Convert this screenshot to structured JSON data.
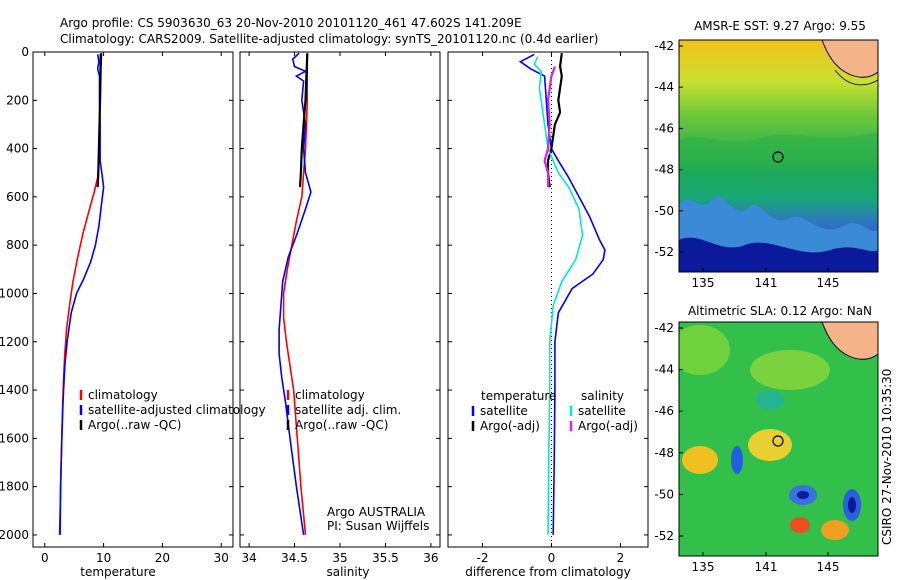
{
  "header": {
    "title_line1": "Argo profile: CS 5903630_63 20-Nov-2010 20101120_461 47.602S 141.209E",
    "title_line2": "Climatology: CARS2009. Satellite-adjusted climatology: synTS_20101120.nc (0.4d earlier)"
  },
  "side_label": "CSIRO 27-Nov-2010 10:35:30",
  "colors": {
    "climatology": "#ff0000",
    "satellite": "#0000ff",
    "argo": "#000000",
    "sal_satellite": "#00e5e5",
    "sal_argo": "#e020e0",
    "land": "#f5b38a"
  },
  "chart_data": [
    {
      "type": "line",
      "id": "temperature",
      "xlabel": "temperature",
      "ylabel": "",
      "xlim": [
        -2,
        32
      ],
      "ylim": [
        2050,
        0
      ],
      "reverse_y": true,
      "xticks": [
        0,
        10,
        20,
        30
      ],
      "yticks": [
        0,
        200,
        400,
        600,
        800,
        1000,
        1200,
        1400,
        1600,
        1800,
        2000
      ],
      "legend": [
        "climatology",
        "satellite-adjusted climatology",
        "Argo(..raw -QC)"
      ],
      "series": [
        {
          "name": "climatology",
          "color": "#ff0000",
          "points": [
            [
              9.4,
              10
            ],
            [
              9.4,
              100
            ],
            [
              9.3,
              300
            ],
            [
              9.2,
              450
            ],
            [
              9.0,
              520
            ],
            [
              8.4,
              580
            ],
            [
              7.6,
              650
            ],
            [
              6.5,
              750
            ],
            [
              5.6,
              850
            ],
            [
              4.8,
              950
            ],
            [
              4.2,
              1050
            ],
            [
              3.7,
              1150
            ],
            [
              3.4,
              1250
            ],
            [
              3.2,
              1350
            ],
            [
              3.0,
              1500
            ],
            [
              2.8,
              1700
            ],
            [
              2.6,
              1900
            ],
            [
              2.5,
              2000
            ]
          ]
        },
        {
          "name": "satellite-adjusted climatology",
          "color": "#0000ff",
          "points": [
            [
              9.0,
              10
            ],
            [
              9.2,
              40
            ],
            [
              9.0,
              70
            ],
            [
              9.3,
              100
            ],
            [
              9.3,
              200
            ],
            [
              9.4,
              300
            ],
            [
              9.4,
              450
            ],
            [
              9.7,
              500
            ],
            [
              10.0,
              560
            ],
            [
              9.6,
              640
            ],
            [
              9.2,
              720
            ],
            [
              8.6,
              800
            ],
            [
              7.8,
              870
            ],
            [
              6.6,
              940
            ],
            [
              5.4,
              1000
            ],
            [
              4.5,
              1080
            ],
            [
              3.8,
              1200
            ],
            [
              3.4,
              1300
            ],
            [
              3.1,
              1450
            ],
            [
              2.9,
              1600
            ],
            [
              2.7,
              1800
            ],
            [
              2.6,
              2000
            ]
          ]
        },
        {
          "name": "Argo(..raw -QC)",
          "color": "#000000",
          "points": [
            [
              9.6,
              5
            ],
            [
              9.5,
              80
            ],
            [
              9.4,
              200
            ],
            [
              9.3,
              300
            ],
            [
              9.2,
              400
            ],
            [
              9.1,
              500
            ],
            [
              9.0,
              560
            ]
          ]
        }
      ]
    },
    {
      "type": "line",
      "id": "salinity",
      "xlabel": "salinity",
      "ylabel": "",
      "xlim": [
        33.9,
        36.1
      ],
      "ylim": [
        2050,
        0
      ],
      "reverse_y": true,
      "xticks": [
        34,
        34.5,
        35,
        35.5,
        36
      ],
      "yticks": [
        0,
        200,
        400,
        600,
        800,
        1000,
        1200,
        1400,
        1600,
        1800,
        2000
      ],
      "legend": [
        "climatology",
        "satellite adj. clim.",
        "Argo(..raw -QC)"
      ],
      "annotations": [
        "Argo AUSTRALIA",
        "PI: Susan Wijffels"
      ],
      "series": [
        {
          "name": "climatology",
          "color": "#ff0000",
          "points": [
            [
              34.64,
              10
            ],
            [
              34.64,
              200
            ],
            [
              34.62,
              400
            ],
            [
              34.6,
              500
            ],
            [
              34.58,
              600
            ],
            [
              34.52,
              700
            ],
            [
              34.47,
              800
            ],
            [
              34.42,
              900
            ],
            [
              34.38,
              1000
            ],
            [
              34.38,
              1100
            ],
            [
              34.41,
              1200
            ],
            [
              34.45,
              1300
            ],
            [
              34.49,
              1400
            ],
            [
              34.53,
              1600
            ],
            [
              34.57,
              1800
            ],
            [
              34.62,
              2000
            ]
          ]
        },
        {
          "name": "satellite adj. clim.",
          "color": "#0000ff",
          "points": [
            [
              34.55,
              5
            ],
            [
              34.48,
              30
            ],
            [
              34.5,
              60
            ],
            [
              34.62,
              80
            ],
            [
              34.52,
              100
            ],
            [
              34.6,
              120
            ],
            [
              34.58,
              200
            ],
            [
              34.62,
              300
            ],
            [
              34.6,
              400
            ],
            [
              34.62,
              500
            ],
            [
              34.68,
              580
            ],
            [
              34.62,
              650
            ],
            [
              34.53,
              750
            ],
            [
              34.43,
              850
            ],
            [
              34.37,
              950
            ],
            [
              34.35,
              1050
            ],
            [
              34.33,
              1150
            ],
            [
              34.33,
              1250
            ],
            [
              34.36,
              1350
            ],
            [
              34.4,
              1450
            ],
            [
              34.45,
              1600
            ],
            [
              34.52,
              1800
            ],
            [
              34.6,
              2000
            ]
          ]
        },
        {
          "name": "Argo(..raw -QC)",
          "color": "#000000",
          "points": [
            [
              34.64,
              5
            ],
            [
              34.63,
              100
            ],
            [
              34.62,
              200
            ],
            [
              34.6,
              300
            ],
            [
              34.58,
              400
            ],
            [
              34.57,
              500
            ],
            [
              34.56,
              560
            ]
          ]
        }
      ]
    },
    {
      "type": "line",
      "id": "difference",
      "xlabel": "difference from climatology",
      "ylabel": "",
      "xlim": [
        -3.0,
        2.8
      ],
      "ylim": [
        2050,
        0
      ],
      "reverse_y": true,
      "xticks": [
        -2,
        0,
        2
      ],
      "yticks": [
        0,
        200,
        400,
        600,
        800,
        1000,
        1200,
        1400,
        1600,
        1800,
        2000
      ],
      "legend_groups": [
        {
          "heading": "temperature",
          "entries": [
            "satellite",
            "Argo(-adj)"
          ]
        },
        {
          "heading": "salinity",
          "entries": [
            "satellite",
            "Argo(-adj)"
          ]
        }
      ],
      "series": [
        {
          "name": "temperature satellite",
          "color": "#0000ff",
          "points": [
            [
              -0.5,
              10
            ],
            [
              -0.9,
              40
            ],
            [
              -0.6,
              70
            ],
            [
              -0.2,
              100
            ],
            [
              -0.15,
              200
            ],
            [
              -0.1,
              300
            ],
            [
              0.0,
              400
            ],
            [
              0.2,
              450
            ],
            [
              0.5,
              520
            ],
            [
              0.8,
              600
            ],
            [
              1.1,
              680
            ],
            [
              1.4,
              780
            ],
            [
              1.55,
              820
            ],
            [
              1.5,
              860
            ],
            [
              1.2,
              920
            ],
            [
              0.6,
              980
            ],
            [
              0.2,
              1080
            ],
            [
              0.1,
              1200
            ],
            [
              0.1,
              1400
            ],
            [
              0.08,
              1700
            ],
            [
              0.05,
              2000
            ]
          ]
        },
        {
          "name": "temperature Argo(-adj)",
          "color": "#000000",
          "points": [
            [
              0.3,
              5
            ],
            [
              0.25,
              60
            ],
            [
              0.3,
              100
            ],
            [
              0.2,
              200
            ],
            [
              0.25,
              250
            ],
            [
              0.1,
              300
            ],
            [
              0.0,
              400
            ],
            [
              -0.1,
              450
            ],
            [
              -0.1,
              500
            ],
            [
              -0.05,
              560
            ]
          ]
        },
        {
          "name": "salinity satellite",
          "color": "#00e5e5",
          "points": [
            [
              -0.4,
              20
            ],
            [
              -0.5,
              50
            ],
            [
              -0.3,
              80
            ],
            [
              -0.35,
              150
            ],
            [
              -0.2,
              300
            ],
            [
              -0.1,
              400
            ],
            [
              0.2,
              500
            ],
            [
              0.5,
              560
            ],
            [
              0.8,
              650
            ],
            [
              0.9,
              760
            ],
            [
              0.7,
              860
            ],
            [
              0.3,
              950
            ],
            [
              0.05,
              1050
            ],
            [
              -0.05,
              1200
            ],
            [
              -0.05,
              1400
            ],
            [
              -0.08,
              1700
            ],
            [
              -0.1,
              2000
            ]
          ]
        },
        {
          "name": "salinity Argo(-adj)",
          "color": "#e020e0",
          "points": [
            [
              0.1,
              60
            ],
            [
              0.0,
              100
            ],
            [
              -0.1,
              200
            ],
            [
              -0.05,
              300
            ],
            [
              -0.1,
              400
            ],
            [
              -0.2,
              450
            ],
            [
              -0.1,
              500
            ],
            [
              -0.1,
              560
            ]
          ]
        }
      ]
    }
  ],
  "maps": [
    {
      "title": "AMSR-E SST: 9.27 Argo: 9.55",
      "xticks": [
        "135",
        "141",
        "145"
      ],
      "yticks": [
        "-42",
        "-44",
        "-46",
        "-48",
        "-50",
        "-52"
      ],
      "kind": "sst"
    },
    {
      "title": "Altimetric SLA: 0.12 Argo: NaN",
      "xticks": [
        "135",
        "141",
        "145"
      ],
      "yticks": [
        "-42",
        "-44",
        "-46",
        "-48",
        "-50",
        "-52"
      ],
      "kind": "sla"
    }
  ]
}
